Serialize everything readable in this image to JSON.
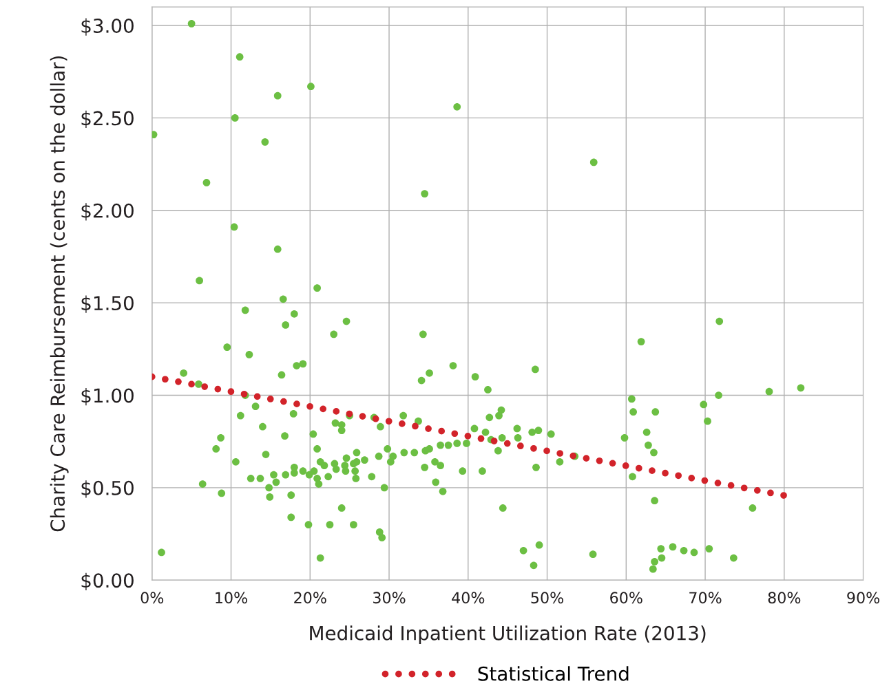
{
  "chart_data": {
    "type": "scatter",
    "xlabel": "Medicaid Inpatient Utilization Rate (2013)",
    "ylabel": "Charity Care Reimbursement (cents on the dollar)",
    "xlim": [
      0,
      90
    ],
    "ylim": [
      0,
      3.1
    ],
    "xticks": [
      {
        "value": 0,
        "label": "0%"
      },
      {
        "value": 10,
        "label": "10%"
      },
      {
        "value": 20,
        "label": "20%"
      },
      {
        "value": 30,
        "label": "30%"
      },
      {
        "value": 40,
        "label": "40%"
      },
      {
        "value": 50,
        "label": "50%"
      },
      {
        "value": 60,
        "label": "60%"
      },
      {
        "value": 70,
        "label": "70%"
      },
      {
        "value": 80,
        "label": "80%"
      },
      {
        "value": 90,
        "label": "90%"
      }
    ],
    "yticks": [
      {
        "value": 0,
        "label": "$0.00"
      },
      {
        "value": 0.5,
        "label": "$0.50"
      },
      {
        "value": 1.0,
        "label": "$1.00"
      },
      {
        "value": 1.5,
        "label": "$1.50"
      },
      {
        "value": 2.0,
        "label": "$2.00"
      },
      {
        "value": 2.5,
        "label": "$2.50"
      },
      {
        "value": 3.0,
        "label": "$3.00"
      }
    ],
    "grid": true,
    "legend": "bottom",
    "series": [
      {
        "marker": "circle",
        "color": "#6cbf43",
        "x": [
          5.0,
          11.1,
          20.1,
          15.9,
          38.6,
          0.2,
          10.5,
          14.3,
          55.9,
          6.9,
          34.5,
          10.4,
          15.9,
          6.0,
          20.9,
          16.6,
          11.8,
          18.0,
          24.6,
          71.8,
          16.9,
          23.0,
          34.3,
          61.9,
          9.5,
          12.3,
          38.1,
          19.1,
          18.3,
          48.5,
          35.1,
          4.0,
          16.4,
          40.9,
          34.1,
          5.9,
          42.5,
          82.1,
          78.1,
          71.7,
          11.8,
          60.7,
          69.8,
          13.1,
          44.2,
          60.9,
          63.7,
          11.2,
          17.9,
          31.8,
          25.0,
          28.1,
          43.9,
          42.7,
          70.3,
          33.7,
          23.2,
          24.0,
          28.9,
          14.0,
          40.8,
          46.2,
          24.0,
          42.2,
          48.9,
          48.1,
          62.6,
          50.5,
          20.4,
          16.8,
          46.3,
          44.3,
          59.8,
          8.7,
          42.9,
          39.8,
          38.6,
          62.8,
          37.5,
          36.5,
          8.1,
          20.9,
          29.8,
          35.1,
          34.6,
          43.8,
          33.2,
          31.9,
          63.5,
          25.9,
          14.4,
          53.5,
          30.5,
          28.7,
          26.9,
          24.6,
          21.3,
          51.6,
          35.8,
          10.6,
          25.9,
          23.1,
          30.2,
          24.4,
          21.8,
          36.5,
          34.5,
          25.5,
          18.0,
          48.6,
          39.3,
          41.8,
          19.1,
          20.5,
          18.0,
          23.3,
          25.7,
          24.5,
          19.9,
          15.4,
          16.9,
          22.3,
          27.8,
          60.8,
          13.7,
          12.5,
          20.9,
          25.8,
          15.7,
          35.9,
          21.1,
          6.4,
          29.4,
          14.8,
          36.8,
          8.8,
          14.9,
          17.6,
          63.6,
          24.0,
          44.4,
          76.0,
          17.6,
          19.8,
          22.5,
          25.5,
          28.8,
          29.1,
          49.0,
          65.9,
          1.2,
          47.0,
          64.4,
          67.3,
          70.5,
          68.6,
          55.8,
          21.3,
          64.5,
          73.6,
          63.6,
          48.3,
          63.4
        ],
        "values": [
          3.01,
          2.83,
          2.67,
          2.62,
          2.56,
          2.41,
          2.5,
          2.37,
          2.26,
          2.15,
          2.09,
          1.91,
          1.79,
          1.62,
          1.58,
          1.52,
          1.46,
          1.44,
          1.4,
          1.4,
          1.38,
          1.33,
          1.33,
          1.29,
          1.26,
          1.22,
          1.16,
          1.17,
          1.16,
          1.14,
          1.12,
          1.12,
          1.11,
          1.1,
          1.08,
          1.06,
          1.03,
          1.04,
          1.02,
          1.0,
          1.0,
          0.98,
          0.95,
          0.94,
          0.92,
          0.91,
          0.91,
          0.89,
          0.9,
          0.89,
          0.89,
          0.88,
          0.89,
          0.88,
          0.86,
          0.86,
          0.85,
          0.84,
          0.83,
          0.83,
          0.82,
          0.82,
          0.81,
          0.8,
          0.81,
          0.8,
          0.8,
          0.79,
          0.79,
          0.78,
          0.77,
          0.77,
          0.77,
          0.77,
          0.76,
          0.74,
          0.74,
          0.73,
          0.73,
          0.73,
          0.71,
          0.71,
          0.71,
          0.71,
          0.7,
          0.7,
          0.69,
          0.69,
          0.69,
          0.69,
          0.68,
          0.67,
          0.67,
          0.67,
          0.65,
          0.66,
          0.64,
          0.64,
          0.64,
          0.64,
          0.64,
          0.63,
          0.64,
          0.62,
          0.62,
          0.62,
          0.61,
          0.63,
          0.61,
          0.61,
          0.59,
          0.59,
          0.59,
          0.59,
          0.58,
          0.6,
          0.59,
          0.59,
          0.57,
          0.57,
          0.57,
          0.56,
          0.56,
          0.56,
          0.55,
          0.55,
          0.55,
          0.55,
          0.53,
          0.53,
          0.52,
          0.52,
          0.5,
          0.5,
          0.48,
          0.47,
          0.45,
          0.46,
          0.43,
          0.39,
          0.39,
          0.39,
          0.34,
          0.3,
          0.3,
          0.3,
          0.26,
          0.23,
          0.19,
          0.18,
          0.15,
          0.16,
          0.17,
          0.16,
          0.17,
          0.15,
          0.14,
          0.12,
          0.12,
          0.12,
          0.1,
          0.08,
          0.06
        ]
      },
      {
        "type": "line",
        "name": "Statistical Trend",
        "color": "#d2232a",
        "line_style": "dotted",
        "marker": "none",
        "x": [
          0,
          81
        ],
        "values": [
          1.1,
          0.45
        ]
      }
    ]
  }
}
